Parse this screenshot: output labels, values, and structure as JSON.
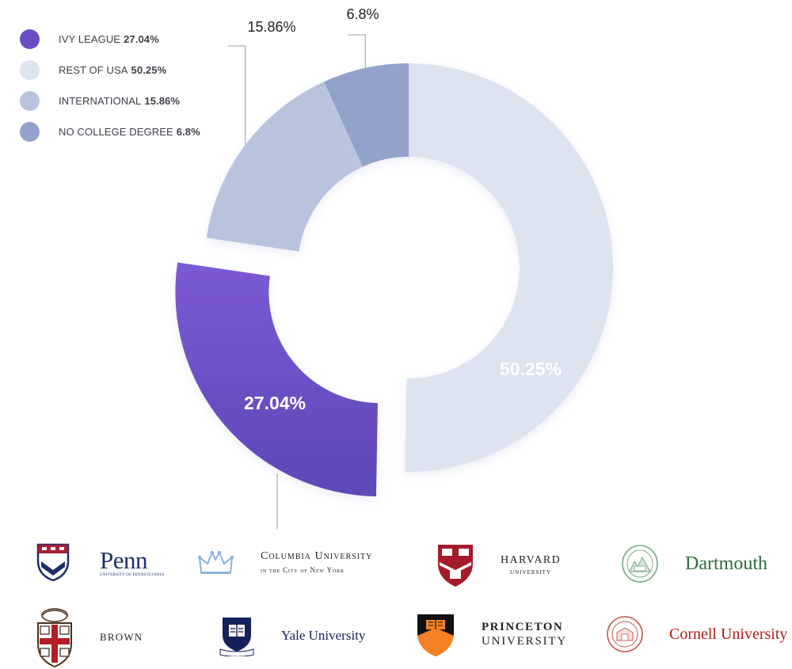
{
  "legend": [
    {
      "label": "IVY LEAGUE",
      "value": "27.04%",
      "color": "#6a4cc6"
    },
    {
      "label": "REST OF USA",
      "value": "50.25%",
      "color": "#dee3f0"
    },
    {
      "label": "INTERNATIONAL",
      "value": "15.86%",
      "color": "#b8c3de"
    },
    {
      "label": "NO COLLEGE DEGREE",
      "value": "6.8%",
      "color": "#93a2cb"
    }
  ],
  "chart_data": {
    "type": "pie",
    "title": "",
    "categories": [
      "IVY LEAGUE",
      "REST OF USA",
      "INTERNATIONAL",
      "NO COLLEGE DEGREE"
    ],
    "values": [
      27.04,
      50.25,
      15.86,
      6.8
    ],
    "labels": [
      "27.04%",
      "50.25%",
      "15.86%",
      "6.8%"
    ],
    "colors": [
      "#6a4cc6",
      "#dee3f0",
      "#b8c3de",
      "#93a2cb"
    ],
    "donut": true,
    "legend_position": "top-left",
    "exploded_slice": "IVY LEAGUE"
  },
  "universities": {
    "penn": {
      "name": "Penn",
      "subtitle": "University of Pennsylvania"
    },
    "columbia": {
      "name": "Columbia University",
      "subtitle": "in the City of New York"
    },
    "harvard": {
      "name": "HARVARD",
      "subtitle": "UNIVERSITY"
    },
    "dartmouth": {
      "name": "Dartmouth",
      "seal_text": "DARTMOUTH"
    },
    "brown": {
      "name": "BROWN"
    },
    "yale": {
      "name": "Yale University",
      "shield_text": "LUX ET VERITAS"
    },
    "princeton": {
      "name": "PRINCETON",
      "subtitle": "UNIVERSITY"
    },
    "cornell": {
      "name": "Cornell University"
    }
  }
}
